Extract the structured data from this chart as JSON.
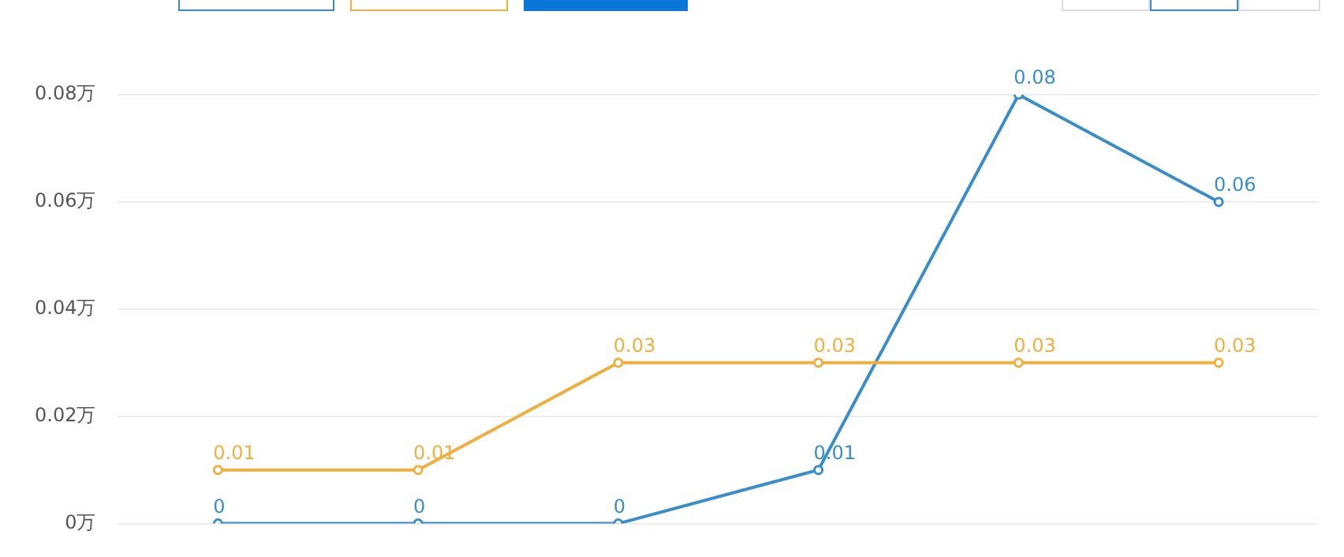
{
  "chart_data": {
    "type": "line",
    "categories": [
      null,
      null,
      null,
      null,
      null,
      null
    ],
    "series": [
      {
        "color": "#f0b040",
        "values": [
          0.01,
          0.01,
          0.03,
          0.03,
          0.03,
          0.03
        ]
      },
      {
        "color": "#3a8ec8",
        "values": [
          0,
          0,
          0,
          0.01,
          0.08,
          0.06
        ]
      }
    ],
    "ylim": [
      0,
      0.08
    ],
    "yticks": [
      {
        "value": 0,
        "label": "0万"
      },
      {
        "value": 0.02,
        "label": "0.02万"
      },
      {
        "value": 0.04,
        "label": "0.04万"
      },
      {
        "value": 0.06,
        "label": "0.06万"
      },
      {
        "value": 0.08,
        "label": "0.08万"
      }
    ],
    "grid": "y",
    "legend": false,
    "tick_labels": "y",
    "marker": "circle",
    "line_style": "solid",
    "data_labels": true
  }
}
